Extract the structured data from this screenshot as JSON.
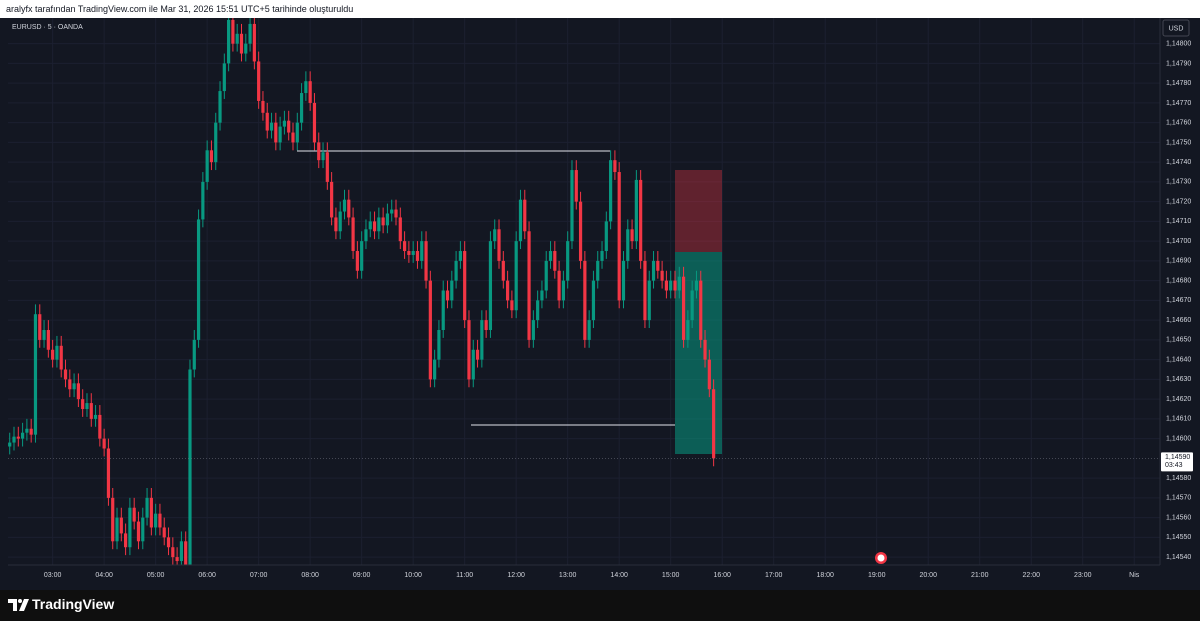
{
  "header": "aralyfx tarafından TradingView.com ile Mar 31, 2026 15:51 UTC+5 tarihinde oluşturuldu",
  "brand": "TradingView",
  "chart_data": {
    "type": "candlestick",
    "title": "EURUSD · 5 · OANDA",
    "currency": "USD",
    "up_color": "#089981",
    "down_color": "#f23645",
    "xlim": [
      128,
      1470
    ],
    "ylim": [
      1.14536,
      1.14813
    ],
    "xticks": [
      {
        "value": 180,
        "label": "03:00"
      },
      {
        "value": 240,
        "label": "04:00"
      },
      {
        "value": 300,
        "label": "05:00"
      },
      {
        "value": 360,
        "label": "06:00"
      },
      {
        "value": 420,
        "label": "07:00"
      },
      {
        "value": 480,
        "label": "08:00"
      },
      {
        "value": 540,
        "label": "09:00"
      },
      {
        "value": 600,
        "label": "10:00"
      },
      {
        "value": 660,
        "label": "11:00"
      },
      {
        "value": 720,
        "label": "12:00"
      },
      {
        "value": 780,
        "label": "13:00"
      },
      {
        "value": 840,
        "label": "14:00"
      },
      {
        "value": 900,
        "label": "15:00"
      },
      {
        "value": 960,
        "label": "16:00"
      },
      {
        "value": 1020,
        "label": "17:00"
      },
      {
        "value": 1080,
        "label": "18:00"
      },
      {
        "value": 1140,
        "label": "19:00"
      },
      {
        "value": 1200,
        "label": "20:00"
      },
      {
        "value": 1260,
        "label": "21:00"
      },
      {
        "value": 1320,
        "label": "22:00"
      },
      {
        "value": 1380,
        "label": "23:00"
      },
      {
        "value": 1440,
        "label": "Nis"
      }
    ],
    "yticks": [
      {
        "value": 1.1454,
        "label": "1,14540"
      },
      {
        "value": 1.1455,
        "label": "1,14550"
      },
      {
        "value": 1.1456,
        "label": "1,14560"
      },
      {
        "value": 1.1457,
        "label": "1,14570"
      },
      {
        "value": 1.1458,
        "label": "1,14580"
      },
      {
        "value": 1.146,
        "label": "1,14600"
      },
      {
        "value": 1.1461,
        "label": "1,14610"
      },
      {
        "value": 1.1462,
        "label": "1,14620"
      },
      {
        "value": 1.1463,
        "label": "1,14630"
      },
      {
        "value": 1.1464,
        "label": "1,14640"
      },
      {
        "value": 1.1465,
        "label": "1,14650"
      },
      {
        "value": 1.1466,
        "label": "1,14660"
      },
      {
        "value": 1.1467,
        "label": "1,14670"
      },
      {
        "value": 1.1468,
        "label": "1,14680"
      },
      {
        "value": 1.1469,
        "label": "1,14690"
      },
      {
        "value": 1.147,
        "label": "1,14700"
      },
      {
        "value": 1.1471,
        "label": "1,14710"
      },
      {
        "value": 1.1472,
        "label": "1,14720"
      },
      {
        "value": 1.1473,
        "label": "1,14730"
      },
      {
        "value": 1.1474,
        "label": "1,14740"
      },
      {
        "value": 1.1475,
        "label": "1,14750"
      },
      {
        "value": 1.1476,
        "label": "1,14760"
      },
      {
        "value": 1.1477,
        "label": "1,14770"
      },
      {
        "value": 1.1478,
        "label": "1,14780"
      },
      {
        "value": 1.1479,
        "label": "1,14790"
      },
      {
        "value": 1.148,
        "label": "1,14800"
      }
    ],
    "last_price": {
      "value": 1.1459,
      "label": "1,14590"
    },
    "countdown": "03:43",
    "x": [
      130,
      135,
      140,
      145,
      150,
      155,
      160,
      165,
      170,
      175,
      180,
      185,
      190,
      195,
      200,
      205,
      210,
      215,
      220,
      225,
      230,
      235,
      240,
      245,
      250,
      255,
      260,
      265,
      270,
      275,
      280,
      285,
      290,
      295,
      300,
      305,
      310,
      315,
      320,
      325,
      330,
      335,
      340,
      345,
      350,
      355,
      360,
      365,
      370,
      375,
      380,
      385,
      390,
      395,
      400,
      405,
      410,
      415,
      420,
      425,
      430,
      435,
      440,
      445,
      450,
      455,
      460,
      465,
      470,
      475,
      480,
      485,
      490,
      495,
      500,
      505,
      510,
      515,
      520,
      525,
      530,
      535,
      540,
      545,
      550,
      555,
      560,
      565,
      570,
      575,
      580,
      585,
      590,
      595,
      600,
      605,
      610,
      615,
      620,
      625,
      630,
      635,
      640,
      645,
      650,
      655,
      660,
      665,
      670,
      675,
      680,
      685,
      690,
      695,
      700,
      705,
      710,
      715,
      720,
      725,
      730,
      735,
      740,
      745,
      750,
      755,
      760,
      765,
      770,
      775,
      780,
      785,
      790,
      795,
      800,
      805,
      810,
      815,
      820,
      825,
      830,
      835,
      840,
      845,
      850,
      855,
      860,
      865,
      870,
      875,
      880,
      885,
      890,
      895,
      900,
      905,
      910,
      915,
      920,
      925,
      930,
      935,
      940,
      945,
      950
    ],
    "open": [
      1.14596,
      1.14598,
      1.14601,
      1.146,
      1.14603,
      1.14605,
      1.14602,
      1.14663,
      1.1465,
      1.14655,
      1.14645,
      1.1464,
      1.14647,
      1.14635,
      1.1463,
      1.14625,
      1.14628,
      1.1462,
      1.14615,
      1.14618,
      1.1461,
      1.14612,
      1.146,
      1.14595,
      1.1457,
      1.14548,
      1.1456,
      1.14552,
      1.14545,
      1.14565,
      1.14558,
      1.14548,
      1.1456,
      1.1457,
      1.14555,
      1.14562,
      1.14555,
      1.1455,
      1.14545,
      1.1454,
      1.14538,
      1.14548,
      1.14536,
      1.14635,
      1.1465,
      1.14711,
      1.1473,
      1.14746,
      1.1474,
      1.1476,
      1.14776,
      1.1479,
      1.14812,
      1.148,
      1.14805,
      1.14795,
      1.148,
      1.1481,
      1.14791,
      1.14771,
      1.14765,
      1.14756,
      1.1476,
      1.1475,
      1.14758,
      1.14761,
      1.14755,
      1.1475,
      1.1476,
      1.14775,
      1.14781,
      1.1477,
      1.1475,
      1.14741,
      1.14745,
      1.1473,
      1.14712,
      1.14705,
      1.14715,
      1.14721,
      1.14712,
      1.14695,
      1.14685,
      1.147,
      1.14706,
      1.1471,
      1.14705,
      1.14712,
      1.14708,
      1.14714,
      1.14716,
      1.14712,
      1.147,
      1.14695,
      1.14693,
      1.14695,
      1.1469,
      1.147,
      1.1468,
      1.1463,
      1.1464,
      1.14655,
      1.14675,
      1.1467,
      1.1468,
      1.1469,
      1.14695,
      1.1466,
      1.1463,
      1.14645,
      1.1464,
      1.1466,
      1.14655,
      1.147,
      1.14706,
      1.1469,
      1.1468,
      1.1467,
      1.14665,
      1.147,
      1.14721,
      1.14705,
      1.1465,
      1.1466,
      1.1467,
      1.14675,
      1.1469,
      1.14695,
      1.14685,
      1.1467,
      1.1468,
      1.147,
      1.14736,
      1.1472,
      1.1469,
      1.1465,
      1.1466,
      1.1468,
      1.1469,
      1.14695,
      1.1471,
      1.14741,
      1.14735,
      1.1467,
      1.1469,
      1.14706,
      1.147,
      1.14731,
      1.1469,
      1.1466,
      1.1468,
      1.1469,
      1.14685,
      1.1468,
      1.14675,
      1.1468,
      1.14675,
      1.14682,
      1.1465,
      1.1466,
      1.14675,
      1.1468,
      1.1465,
      1.1464,
      1.14625
    ],
    "high": [
      1.14603,
      1.14606,
      1.14606,
      1.14608,
      1.1461,
      1.1461,
      1.14668,
      1.14668,
      1.1466,
      1.1466,
      1.1465,
      1.14652,
      1.14652,
      1.1464,
      1.14635,
      1.14633,
      1.14633,
      1.14625,
      1.14623,
      1.14623,
      1.14617,
      1.14617,
      1.14605,
      1.146,
      1.14575,
      1.14565,
      1.14565,
      1.14557,
      1.1457,
      1.1457,
      1.14563,
      1.14565,
      1.14575,
      1.14575,
      1.14567,
      1.14567,
      1.1456,
      1.14555,
      1.1455,
      1.14545,
      1.14553,
      1.14553,
      1.1464,
      1.14655,
      1.14716,
      1.14735,
      1.14751,
      1.14751,
      1.14765,
      1.14781,
      1.14795,
      1.14817,
      1.14817,
      1.1481,
      1.1481,
      1.14805,
      1.14815,
      1.14815,
      1.14796,
      1.14776,
      1.1477,
      1.14765,
      1.14765,
      1.14763,
      1.14766,
      1.14766,
      1.1476,
      1.14765,
      1.1478,
      1.14786,
      1.14786,
      1.14775,
      1.14755,
      1.1475,
      1.1475,
      1.14735,
      1.14717,
      1.1472,
      1.14726,
      1.14726,
      1.14717,
      1.147,
      1.14705,
      1.14711,
      1.14715,
      1.14715,
      1.14717,
      1.14717,
      1.14719,
      1.14721,
      1.14721,
      1.14717,
      1.14705,
      1.147,
      1.147,
      1.147,
      1.14705,
      1.14705,
      1.14685,
      1.14645,
      1.1466,
      1.1468,
      1.1468,
      1.14685,
      1.14695,
      1.147,
      1.147,
      1.14665,
      1.1465,
      1.1465,
      1.14665,
      1.14665,
      1.14705,
      1.14711,
      1.14711,
      1.14695,
      1.14685,
      1.14675,
      1.14705,
      1.14726,
      1.14726,
      1.1471,
      1.14665,
      1.14675,
      1.1468,
      1.14695,
      1.147,
      1.147,
      1.1469,
      1.14685,
      1.14705,
      1.14741,
      1.14741,
      1.14725,
      1.14695,
      1.14665,
      1.14685,
      1.14695,
      1.147,
      1.14715,
      1.14746,
      1.14746,
      1.1474,
      1.14695,
      1.14711,
      1.14711,
      1.14736,
      1.14736,
      1.14695,
      1.14685,
      1.14695,
      1.14695,
      1.1469,
      1.14685,
      1.14685,
      1.14685,
      1.14687,
      1.14687,
      1.14665,
      1.1468,
      1.14685,
      1.14685,
      1.14655,
      1.14645,
      1.1463
    ],
    "low": [
      1.14592,
      1.14594,
      1.14596,
      1.14596,
      1.14599,
      1.14598,
      1.14598,
      1.14646,
      1.14646,
      1.14641,
      1.14636,
      1.14636,
      1.14631,
      1.14626,
      1.14621,
      1.14621,
      1.14616,
      1.14611,
      1.14611,
      1.14606,
      1.14606,
      1.14596,
      1.14591,
      1.14566,
      1.14544,
      1.14544,
      1.14548,
      1.14541,
      1.14541,
      1.14554,
      1.14544,
      1.14544,
      1.14556,
      1.14551,
      1.14551,
      1.14551,
      1.14546,
      1.14541,
      1.14536,
      1.14534,
      1.14534,
      1.14532,
      1.14532,
      1.14631,
      1.14646,
      1.14707,
      1.14726,
      1.14736,
      1.14736,
      1.14756,
      1.14772,
      1.14786,
      1.14796,
      1.14796,
      1.14791,
      1.14791,
      1.14796,
      1.14787,
      1.14767,
      1.14761,
      1.14752,
      1.14752,
      1.14746,
      1.14746,
      1.14754,
      1.14751,
      1.14746,
      1.14746,
      1.14756,
      1.14771,
      1.14766,
      1.14746,
      1.14737,
      1.14737,
      1.14726,
      1.14708,
      1.14701,
      1.14701,
      1.14711,
      1.14708,
      1.14691,
      1.14681,
      1.14681,
      1.14696,
      1.14702,
      1.14701,
      1.14701,
      1.14704,
      1.14704,
      1.1471,
      1.14708,
      1.14696,
      1.14691,
      1.14689,
      1.14689,
      1.14686,
      1.14686,
      1.14676,
      1.14626,
      1.14626,
      1.14636,
      1.14651,
      1.14666,
      1.14666,
      1.14676,
      1.14686,
      1.14656,
      1.14626,
      1.14626,
      1.14636,
      1.14636,
      1.14651,
      1.14651,
      1.14696,
      1.14686,
      1.14676,
      1.14666,
      1.14661,
      1.14661,
      1.14696,
      1.14701,
      1.14646,
      1.14646,
      1.14656,
      1.14666,
      1.14671,
      1.14686,
      1.14681,
      1.14666,
      1.14666,
      1.14676,
      1.14696,
      1.14716,
      1.14686,
      1.14646,
      1.14646,
      1.14656,
      1.14676,
      1.14686,
      1.14691,
      1.14706,
      1.14731,
      1.14666,
      1.14666,
      1.14686,
      1.14696,
      1.14696,
      1.14686,
      1.14656,
      1.14656,
      1.14676,
      1.14681,
      1.14676,
      1.14671,
      1.14671,
      1.14671,
      1.14671,
      1.14646,
      1.14646,
      1.14656,
      1.14671,
      1.14646,
      1.14636,
      1.14621,
      1.14586
    ],
    "close": [
      1.14598,
      1.14601,
      1.146,
      1.14603,
      1.14605,
      1.14602,
      1.14663,
      1.1465,
      1.14655,
      1.14645,
      1.1464,
      1.14647,
      1.14635,
      1.1463,
      1.14625,
      1.14628,
      1.1462,
      1.14615,
      1.14618,
      1.1461,
      1.14612,
      1.146,
      1.14595,
      1.1457,
      1.14548,
      1.1456,
      1.14552,
      1.14545,
      1.14565,
      1.14558,
      1.14548,
      1.1456,
      1.1457,
      1.14555,
      1.14562,
      1.14555,
      1.1455,
      1.14545,
      1.1454,
      1.14538,
      1.14548,
      1.14536,
      1.14635,
      1.1465,
      1.14711,
      1.1473,
      1.14746,
      1.1474,
      1.1476,
      1.14776,
      1.1479,
      1.14812,
      1.148,
      1.14805,
      1.14795,
      1.148,
      1.1481,
      1.14791,
      1.14771,
      1.14765,
      1.14756,
      1.1476,
      1.1475,
      1.14758,
      1.14761,
      1.14755,
      1.1475,
      1.1476,
      1.14775,
      1.14781,
      1.1477,
      1.1475,
      1.14741,
      1.14745,
      1.1473,
      1.14712,
      1.14705,
      1.14715,
      1.14721,
      1.14712,
      1.14695,
      1.14685,
      1.147,
      1.14706,
      1.1471,
      1.14705,
      1.14712,
      1.14708,
      1.14714,
      1.14716,
      1.14712,
      1.147,
      1.14695,
      1.14693,
      1.14695,
      1.1469,
      1.147,
      1.1468,
      1.1463,
      1.1464,
      1.14655,
      1.14675,
      1.1467,
      1.1468,
      1.1469,
      1.14695,
      1.1466,
      1.1463,
      1.14645,
      1.1464,
      1.1466,
      1.14655,
      1.147,
      1.14706,
      1.1469,
      1.1468,
      1.1467,
      1.14665,
      1.147,
      1.14721,
      1.14705,
      1.1465,
      1.1466,
      1.1467,
      1.14675,
      1.1469,
      1.14695,
      1.14685,
      1.1467,
      1.1468,
      1.147,
      1.14736,
      1.1472,
      1.1469,
      1.1465,
      1.1466,
      1.1468,
      1.1469,
      1.14695,
      1.1471,
      1.14741,
      1.14735,
      1.1467,
      1.1469,
      1.14706,
      1.147,
      1.14731,
      1.1469,
      1.1466,
      1.1468,
      1.1469,
      1.14685,
      1.1468,
      1.14675,
      1.1468,
      1.14675,
      1.14682,
      1.1465,
      1.1466,
      1.14675,
      1.1468,
      1.1465,
      1.1464,
      1.14625,
      1.1459
    ]
  }
}
